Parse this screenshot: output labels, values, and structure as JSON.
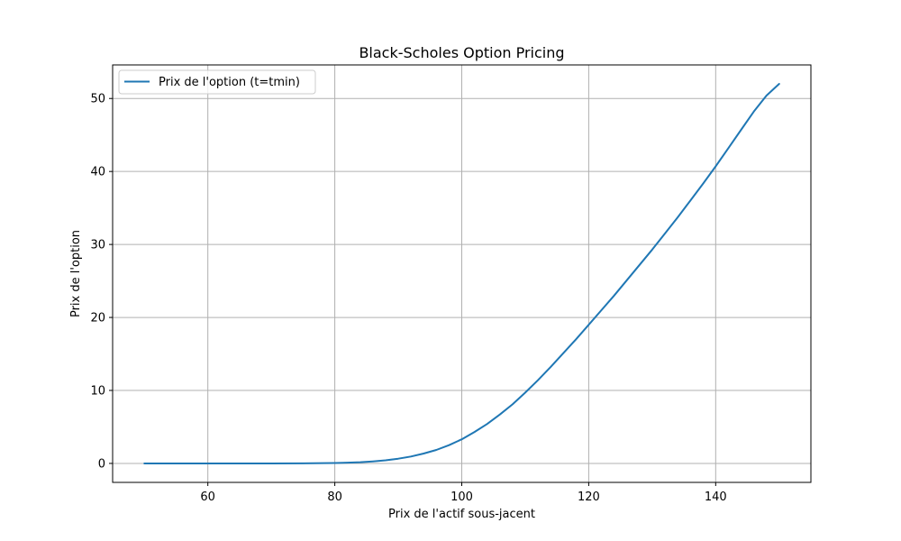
{
  "chart_data": {
    "type": "line",
    "title": "Black-Scholes Option Pricing",
    "xlabel": "Prix de l'actif sous-jacent",
    "ylabel": "Prix de l'option",
    "xlim": [
      45,
      155
    ],
    "ylim": [
      -2.6,
      54.6
    ],
    "xticks": [
      60,
      80,
      100,
      120,
      140
    ],
    "yticks": [
      0,
      10,
      20,
      30,
      40,
      50
    ],
    "grid": true,
    "legend_position": "upper-left",
    "series": [
      {
        "name": "Prix de l'option (t=tmin)",
        "color": "#1f77b4",
        "x": [
          50,
          60,
          70,
          75,
          80,
          82,
          84,
          86,
          88,
          90,
          92,
          94,
          96,
          98,
          100,
          102,
          104,
          106,
          108,
          110,
          112,
          114,
          116,
          118,
          120,
          122,
          124,
          126,
          128,
          130,
          132,
          134,
          136,
          138,
          140,
          142,
          144,
          146,
          148,
          150
        ],
        "y": [
          0.0,
          0.0,
          0.0,
          0.01,
          0.05,
          0.1,
          0.17,
          0.28,
          0.43,
          0.65,
          0.95,
          1.35,
          1.85,
          2.5,
          3.3,
          4.3,
          5.4,
          6.7,
          8.1,
          9.7,
          11.4,
          13.2,
          15.1,
          17.0,
          19.0,
          21.0,
          23.0,
          25.1,
          27.2,
          29.3,
          31.5,
          33.7,
          36.0,
          38.3,
          40.7,
          43.2,
          45.7,
          48.2,
          50.4,
          52.0
        ]
      }
    ]
  }
}
